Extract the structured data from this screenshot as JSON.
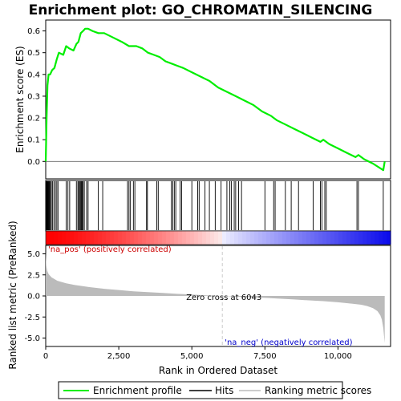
{
  "chart_data": {
    "type": "line",
    "title": "Enrichment plot: GO_CHROMATIN_SILENCING",
    "xlabel": "Rank in Ordered Dataset",
    "ylabel_top": "Enrichment score (ES)",
    "ylabel_bottom": "Ranked list metric (PreRanked)",
    "x_ticks": [
      0,
      2500,
      5000,
      7500,
      10000
    ],
    "x_tick_labels": [
      "0",
      "2,500",
      "5,000",
      "7,500",
      "10,000"
    ],
    "es_y_ticks": [
      0.0,
      0.1,
      0.2,
      0.3,
      0.4,
      0.5,
      0.6
    ],
    "es_y_tick_labels": [
      "0.0",
      "0.1",
      "0.2",
      "0.3",
      "0.4",
      "0.5",
      "0.6"
    ],
    "metric_y_ticks": [
      5.0,
      2.5,
      0.0,
      -2.5,
      -5.0
    ],
    "metric_y_tick_labels": [
      "5.0",
      "2.5",
      "0.0",
      "-2.5",
      "-5.0"
    ],
    "xlim": [
      0,
      11800
    ],
    "es_ylim": [
      -0.08,
      0.65
    ],
    "metric_ylim": [
      -6.0,
      6.0
    ],
    "n_genes": 11600,
    "zero_cross": 6043,
    "zero_cross_label": "Zero cross at 6043",
    "pos_label": "'na_pos' (positively correlated)",
    "neg_label": "'na_neg' (negatively correlated)",
    "colors": {
      "es_line": "#00ee00",
      "hits": "#000000",
      "metric_fill": "#bbbbbb",
      "pos_label": "#cc0000",
      "neg_label": "#0000cc",
      "zero_line": "#cccccc"
    },
    "series": [
      {
        "name": "Enrichment profile",
        "x": [
          0,
          30,
          60,
          100,
          150,
          220,
          300,
          380,
          450,
          600,
          700,
          800,
          950,
          1050,
          1120,
          1200,
          1280,
          1350,
          1450,
          1600,
          1800,
          2000,
          2300,
          2600,
          2850,
          3000,
          3100,
          3300,
          3500,
          3700,
          3900,
          4100,
          4300,
          4500,
          4700,
          5000,
          5300,
          5600,
          5900,
          6200,
          6500,
          6800,
          7100,
          7400,
          7700,
          7900,
          8200,
          8500,
          8800,
          9100,
          9400,
          9500,
          9700,
          10000,
          10300,
          10600,
          10700,
          10900,
          11200,
          11550,
          11600
        ],
        "values": [
          0.0,
          0.2,
          0.35,
          0.4,
          0.4,
          0.42,
          0.43,
          0.47,
          0.5,
          0.49,
          0.53,
          0.52,
          0.51,
          0.54,
          0.55,
          0.59,
          0.6,
          0.61,
          0.61,
          0.6,
          0.59,
          0.59,
          0.57,
          0.55,
          0.53,
          0.53,
          0.53,
          0.52,
          0.5,
          0.49,
          0.48,
          0.46,
          0.45,
          0.44,
          0.43,
          0.41,
          0.39,
          0.37,
          0.34,
          0.32,
          0.3,
          0.28,
          0.26,
          0.23,
          0.21,
          0.19,
          0.17,
          0.15,
          0.13,
          0.11,
          0.09,
          0.1,
          0.08,
          0.06,
          0.04,
          0.02,
          0.03,
          0.01,
          -0.01,
          -0.04,
          0.0
        ]
      },
      {
        "name": "Hits",
        "x": [
          10,
          25,
          40,
          55,
          70,
          90,
          110,
          130,
          160,
          190,
          230,
          280,
          330,
          380,
          420,
          700,
          760,
          820,
          1050,
          1100,
          1130,
          1160,
          1190,
          1220,
          1250,
          1280,
          1320,
          1400,
          1450,
          1800,
          1950,
          2800,
          2850,
          2900,
          3000,
          3050,
          3450,
          3480,
          3800,
          3850,
          4300,
          4350,
          4400,
          4450,
          4600,
          4650,
          5000,
          5200,
          5250,
          5450,
          5600,
          5800,
          6000,
          6200,
          6300,
          6350,
          6450,
          6500,
          6600,
          6700,
          7500,
          7800,
          7850,
          8200,
          8400,
          8650,
          9150,
          9400,
          9450,
          9550,
          9600,
          10650,
          10700,
          11550
        ]
      },
      {
        "name": "Ranking metric scores",
        "x": [
          0,
          20,
          50,
          100,
          200,
          400,
          700,
          1000,
          1500,
          2000,
          2500,
          3000,
          3500,
          4000,
          4500,
          5000,
          5500,
          6043,
          6500,
          7000,
          7500,
          8000,
          8500,
          9000,
          9500,
          10000,
          10500,
          10800,
          11000,
          11200,
          11350,
          11450,
          11500,
          11550,
          11600
        ],
        "values": [
          5.2,
          3.6,
          3.0,
          2.6,
          2.2,
          1.8,
          1.5,
          1.3,
          1.05,
          0.85,
          0.7,
          0.55,
          0.45,
          0.35,
          0.25,
          0.17,
          0.08,
          0.0,
          -0.08,
          -0.15,
          -0.23,
          -0.32,
          -0.42,
          -0.52,
          -0.62,
          -0.75,
          -0.92,
          -1.05,
          -1.2,
          -1.45,
          -1.8,
          -2.3,
          -2.8,
          -3.8,
          -5.6
        ]
      }
    ],
    "legend": {
      "placement": "bottom",
      "entries": [
        "Enrichment profile",
        "Hits",
        "Ranking metric scores"
      ]
    }
  }
}
